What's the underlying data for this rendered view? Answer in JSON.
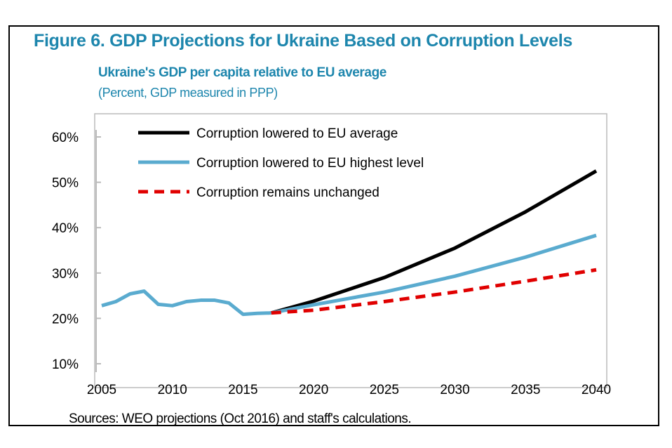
{
  "chart_data": {
    "type": "line",
    "title": "Figure 6. GDP Projections for Ukraine Based on Corruption Levels",
    "subtitle": "Ukraine's GDP per capita relative to EU average",
    "units": "(Percent, GDP measured in PPP)",
    "source": "Sources: WEO projections (Oct 2016) and staff's calculations.",
    "xlim": [
      2005,
      2040
    ],
    "ylim": [
      10,
      60
    ],
    "x_ticks": [
      "2005",
      "2010",
      "2015",
      "2020",
      "2025",
      "2030",
      "2035",
      "2040"
    ],
    "y_ticks": [
      "10%",
      "20%",
      "30%",
      "40%",
      "50%",
      "60%"
    ],
    "legend_position": "top-left",
    "series": [
      {
        "name": "Historical",
        "color": "#5aabcf",
        "dash": false,
        "in_legend": false,
        "x": [
          2005,
          2006,
          2007,
          2008,
          2009,
          2010,
          2011,
          2012,
          2013,
          2014,
          2015,
          2016,
          2017
        ],
        "y": [
          22.8,
          23.7,
          25.4,
          26.0,
          23.1,
          22.8,
          23.7,
          24.0,
          24.0,
          23.4,
          20.9,
          21.1,
          21.2
        ]
      },
      {
        "name": "Corruption lowered to EU average",
        "color": "#000000",
        "dash": false,
        "in_legend": true,
        "x": [
          2017,
          2020,
          2025,
          2030,
          2035,
          2040
        ],
        "y": [
          21.2,
          23.8,
          29.0,
          35.5,
          43.5,
          52.5
        ]
      },
      {
        "name": "Corruption lowered to EU highest level",
        "color": "#5aabcf",
        "dash": false,
        "in_legend": true,
        "x": [
          2017,
          2020,
          2025,
          2030,
          2035,
          2040
        ],
        "y": [
          21.2,
          23.0,
          25.8,
          29.3,
          33.5,
          38.3
        ]
      },
      {
        "name": "Corruption remains unchanged",
        "color": "#e00000",
        "dash": true,
        "in_legend": true,
        "x": [
          2017,
          2020,
          2025,
          2030,
          2035,
          2040
        ],
        "y": [
          21.2,
          21.8,
          23.7,
          25.8,
          28.2,
          30.7
        ]
      }
    ]
  }
}
